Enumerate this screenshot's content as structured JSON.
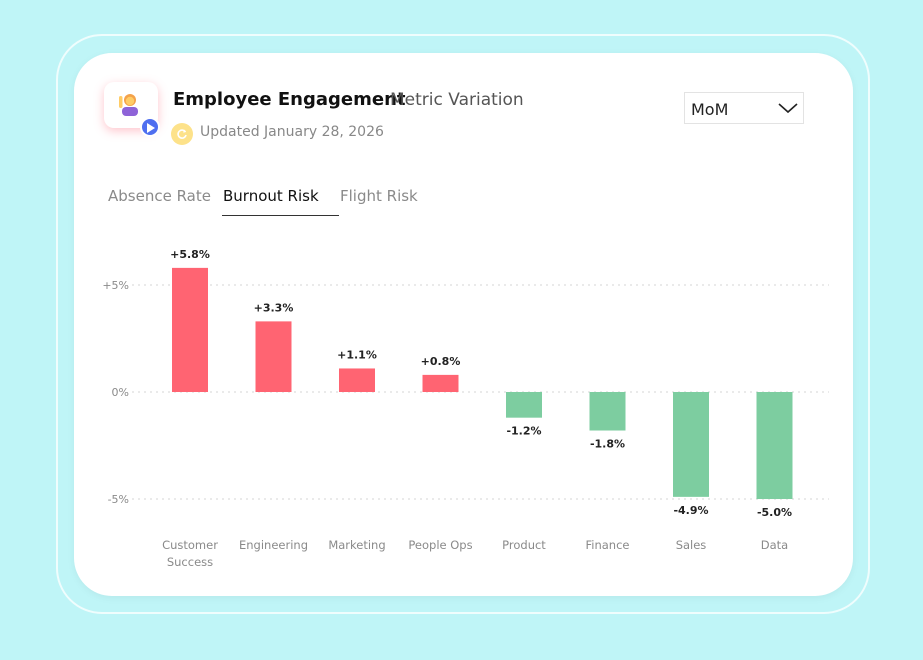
{
  "header": {
    "title": "Employee Engagement",
    "subtitle": "Metric Variation",
    "updated": "Updated January 28, 2026",
    "app_icon": "person-raising-hand-emoji",
    "play_icon": "play-icon",
    "refresh_icon": "refresh-icon"
  },
  "period_select": {
    "value": "MoM",
    "icon": "chevron-down-icon"
  },
  "tabs": [
    {
      "label": "Absence Rate",
      "active": false
    },
    {
      "label": "Burnout Risk",
      "active": true
    },
    {
      "label": "Flight Risk",
      "active": false
    }
  ],
  "colors": {
    "positive": "#ff6472",
    "negative": "#7dcda0",
    "accent": "#4f6ff0",
    "background": "#bff5f7"
  },
  "chart_data": {
    "type": "bar",
    "categories": [
      "Customer Success",
      "Engineering",
      "Marketing",
      "People Ops",
      "Product",
      "Finance",
      "Sales",
      "Data"
    ],
    "values": [
      5.8,
      3.3,
      1.1,
      0.8,
      -1.2,
      -1.8,
      -4.9,
      -5.0
    ],
    "value_labels": [
      "+5.8%",
      "+3.3%",
      "+1.1%",
      "+0.8%",
      "-1.2%",
      "-1.8%",
      "-4.9%",
      "-5.0%"
    ],
    "yticks": [
      5,
      0,
      -5
    ],
    "ytick_labels": [
      "+5%",
      "0%",
      "-5%"
    ],
    "ylim": [
      -5.0,
      5.8
    ],
    "grid": true,
    "legend": "none"
  }
}
